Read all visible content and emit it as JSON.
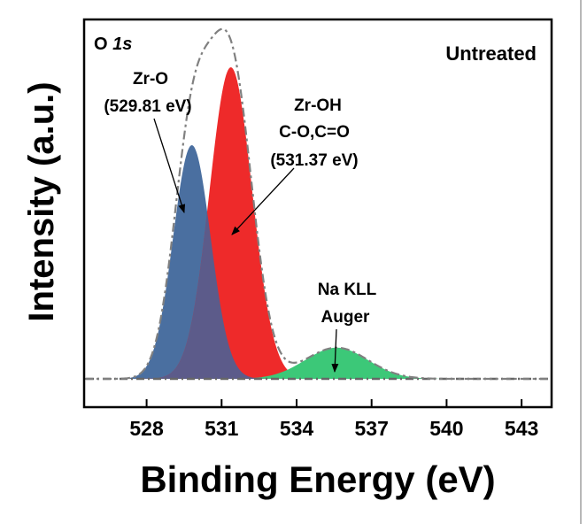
{
  "chart_data": {
    "type": "area",
    "panel_label_main": "O ",
    "panel_label_italic": "1s",
    "condition": "Untreated",
    "xlabel": "Binding Energy (eV)",
    "ylabel": "Intensity (a.u.)",
    "xlim": [
      525.5,
      544.2
    ],
    "ylim": [
      0,
      1
    ],
    "xticks": [
      528,
      531,
      534,
      537,
      540,
      543
    ],
    "xtick_labels": [
      "528",
      "531",
      "534",
      "537",
      "540",
      "543"
    ],
    "y_tick_labels": false,
    "grid": false,
    "peaks": [
      {
        "name": "Zr-O",
        "center": 529.81,
        "amplitude": 0.6,
        "sigma": 0.75,
        "color": "#4a6fa0"
      },
      {
        "name": "Zr-OH C-O,C=O",
        "center": 531.37,
        "amplitude": 0.8,
        "sigma": 0.85,
        "color": "#ee2a2a"
      },
      {
        "name": "Na KLL Auger",
        "center": 535.6,
        "amplitude": 0.08,
        "sigma": 1.25,
        "color": "#3cc878"
      }
    ],
    "overlap_color": "#5c5b8a",
    "envelope_color": "#808080",
    "annotations": [
      {
        "lines": [
          "Zr-O",
          "(529.81 eV)"
        ]
      },
      {
        "lines": [
          "Zr-OH",
          "C-O,C=O",
          "(531.37 eV)"
        ]
      },
      {
        "lines": [
          "Na KLL",
          "Auger"
        ]
      }
    ]
  }
}
